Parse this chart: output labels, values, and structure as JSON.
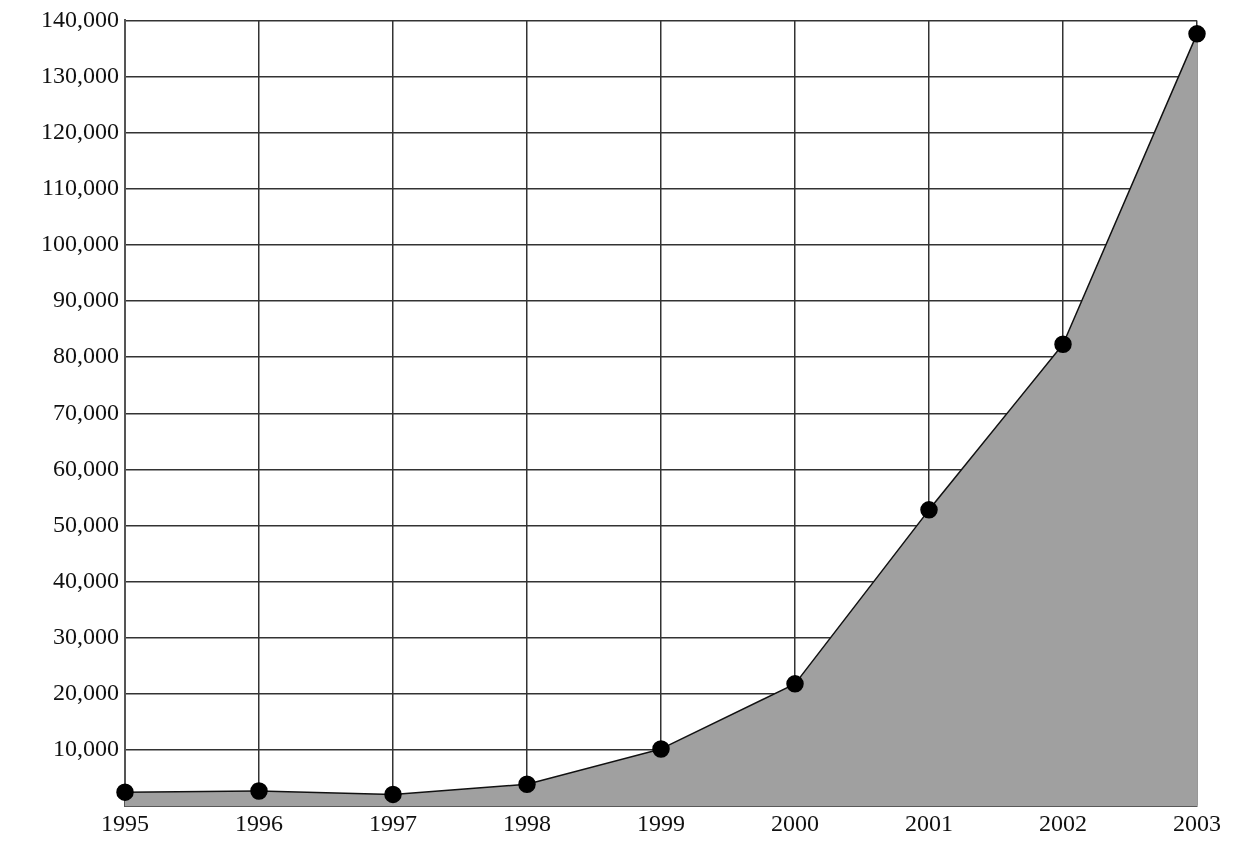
{
  "chart_data": {
    "type": "area",
    "categories": [
      "1995",
      "1996",
      "1997",
      "1998",
      "1999",
      "2000",
      "2001",
      "2002",
      "2003"
    ],
    "series": [
      {
        "color": "#a0a0a0",
        "values": [
          2500,
          2700,
          2100,
          3900,
          10200,
          21800,
          52800,
          82300,
          137600
        ]
      }
    ],
    "ylim": [
      0,
      140000
    ],
    "yticks": [
      {
        "value": 0,
        "label": null
      },
      {
        "value": 10000,
        "label": "10,000"
      },
      {
        "value": 20000,
        "label": "20,000"
      },
      {
        "value": 30000,
        "label": "30,000"
      },
      {
        "value": 40000,
        "label": "40,000"
      },
      {
        "value": 50000,
        "label": "50,000"
      },
      {
        "value": 60000,
        "label": "60,000"
      },
      {
        "value": 70000,
        "label": "70,000"
      },
      {
        "value": 80000,
        "label": "80,000"
      },
      {
        "value": 90000,
        "label": "90,000"
      },
      {
        "value": 100000,
        "label": "100,000"
      },
      {
        "value": 110000,
        "label": "110,000"
      },
      {
        "value": 120000,
        "label": "120,000"
      },
      {
        "value": 130000,
        "label": "130,000"
      },
      {
        "value": 140000,
        "label": "140,000"
      }
    ],
    "grid": true,
    "marker": "circle",
    "legend": false
  }
}
